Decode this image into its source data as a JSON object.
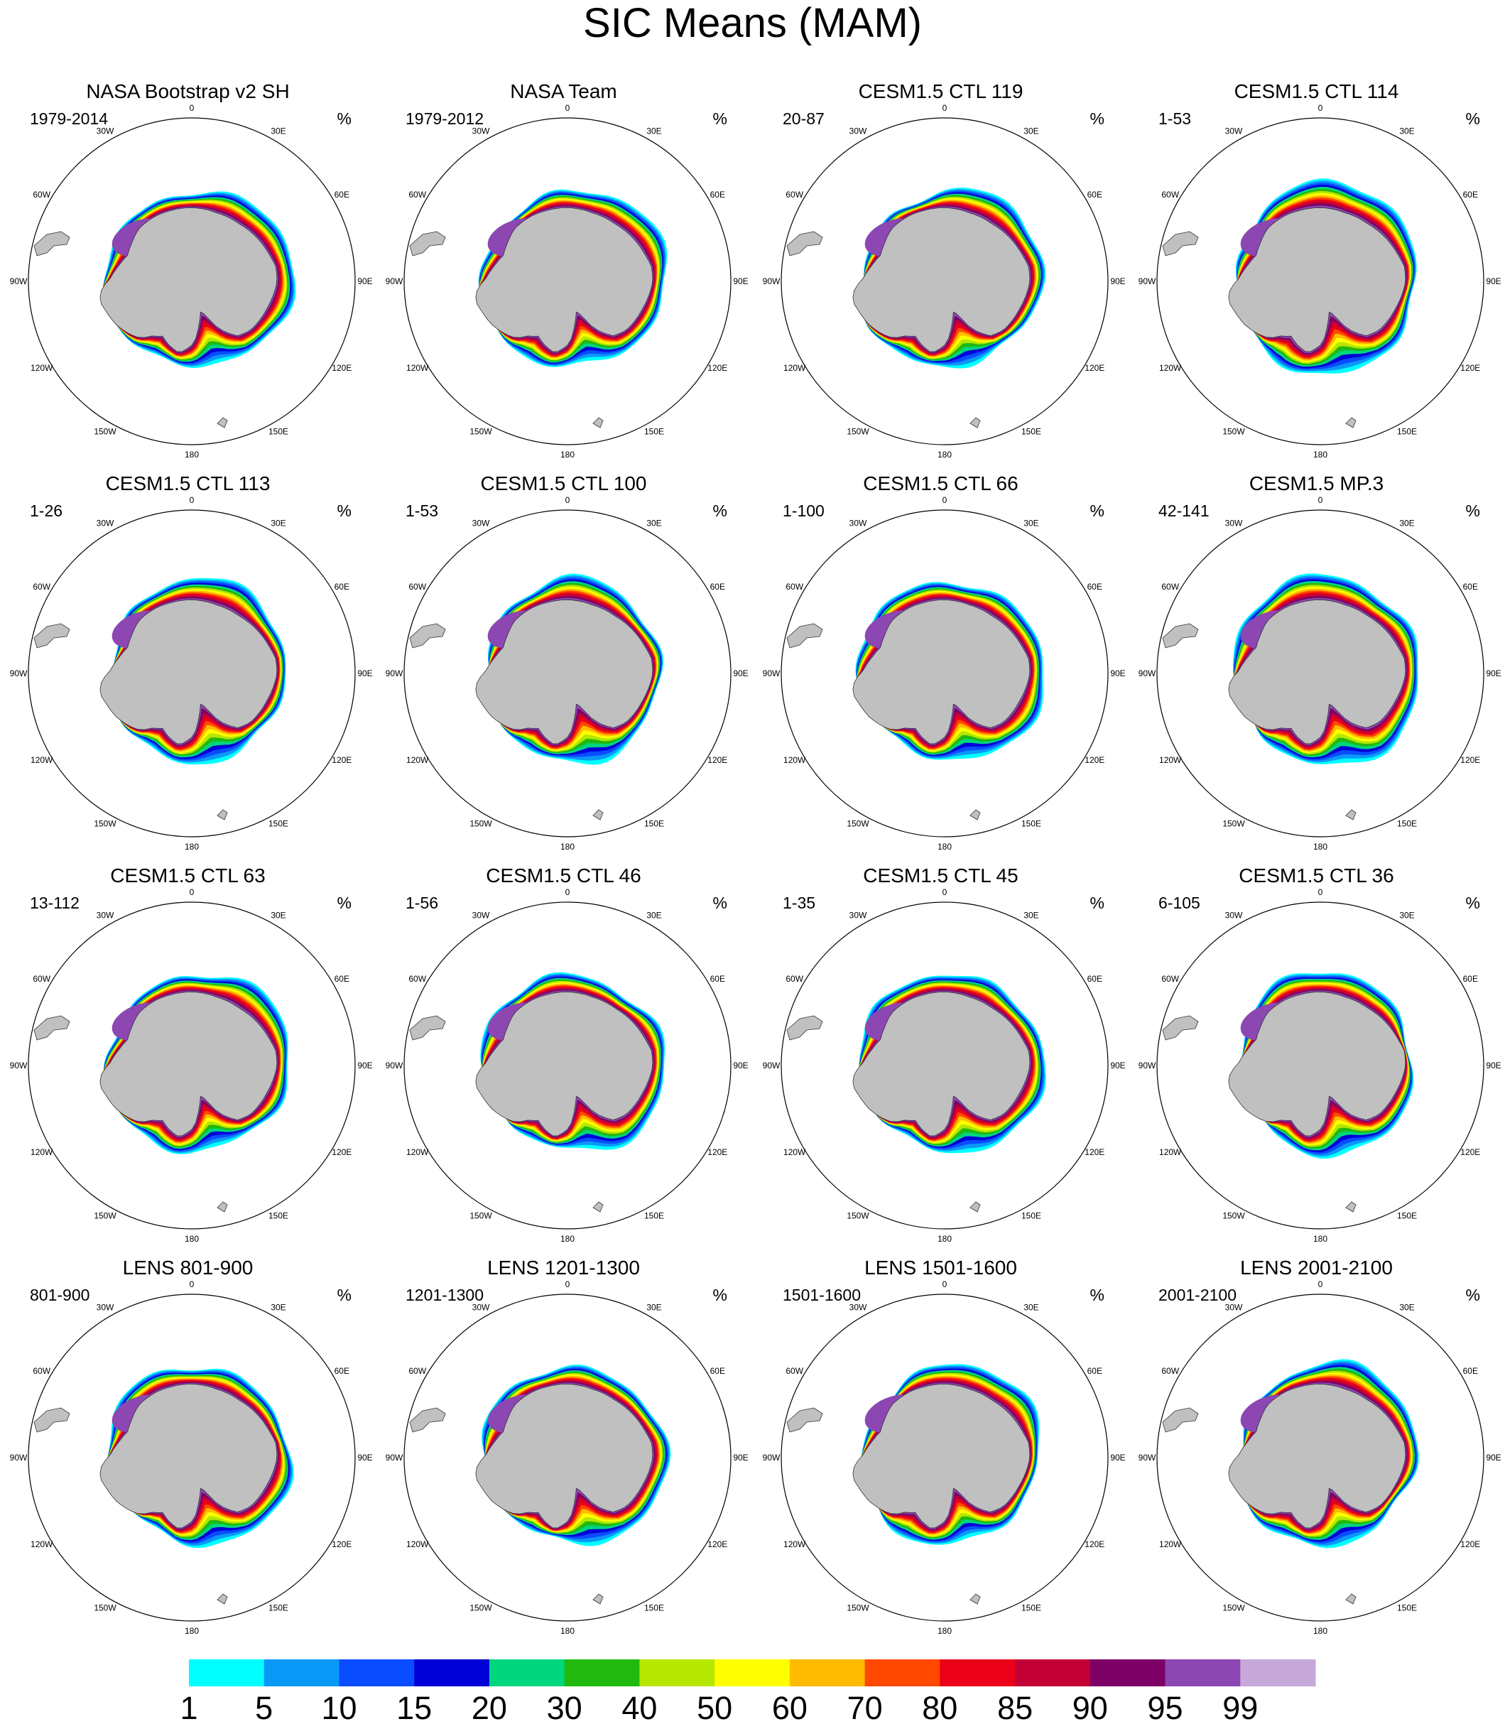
{
  "figure": {
    "title": "SIC Means (MAM)",
    "units": "%",
    "land_color": "#c0c0c0"
  },
  "panels": [
    {
      "title": "NASA Bootstrap v2 SH",
      "years": "1979-2014"
    },
    {
      "title": "NASA Team",
      "years": "1979-2012"
    },
    {
      "title": "CESM1.5 CTL 119",
      "years": "20-87"
    },
    {
      "title": "CESM1.5 CTL 114",
      "years": "1-53"
    },
    {
      "title": "CESM1.5 CTL 113",
      "years": "1-26"
    },
    {
      "title": "CESM1.5 CTL 100",
      "years": "1-53"
    },
    {
      "title": "CESM1.5 CTL 66",
      "years": "1-100"
    },
    {
      "title": "CESM1.5 MP.3",
      "years": "42-141"
    },
    {
      "title": "CESM1.5 CTL 63",
      "years": "13-112"
    },
    {
      "title": "CESM1.5 CTL 46",
      "years": "1-56"
    },
    {
      "title": "CESM1.5 CTL 45",
      "years": "1-35"
    },
    {
      "title": "CESM1.5 CTL 36",
      "years": "6-105"
    },
    {
      "title": "LENS 801-900",
      "years": "801-900"
    },
    {
      "title": "LENS 1201-1300",
      "years": "1201-1300"
    },
    {
      "title": "LENS 1501-1600",
      "years": "1501-1600"
    },
    {
      "title": "LENS 2001-2100",
      "years": "2001-2100"
    }
  ],
  "longitude_labels": [
    {
      "text": "0",
      "lon": 0
    },
    {
      "text": "30E",
      "lon": 30
    },
    {
      "text": "60E",
      "lon": 60
    },
    {
      "text": "90E",
      "lon": 90
    },
    {
      "text": "120E",
      "lon": 120
    },
    {
      "text": "150E",
      "lon": 150
    },
    {
      "text": "180",
      "lon": 180
    },
    {
      "text": "150W",
      "lon": -150
    },
    {
      "text": "120W",
      "lon": -120
    },
    {
      "text": "90W",
      "lon": -90
    },
    {
      "text": "60W",
      "lon": -60
    },
    {
      "text": "30W",
      "lon": -30
    }
  ],
  "colorbar": {
    "levels": [
      "1",
      "5",
      "10",
      "15",
      "20",
      "30",
      "40",
      "50",
      "60",
      "70",
      "80",
      "85",
      "90",
      "95",
      "99"
    ],
    "colors": [
      "#00ffff",
      "#0a98f7",
      "#0a4cff",
      "#0000d8",
      "#00d67e",
      "#22b90f",
      "#b6e700",
      "#ffff00",
      "#ffbb00",
      "#ff4800",
      "#ea0019",
      "#c20036",
      "#7c0066",
      "#8c47b2",
      "#c7a8da"
    ]
  }
}
